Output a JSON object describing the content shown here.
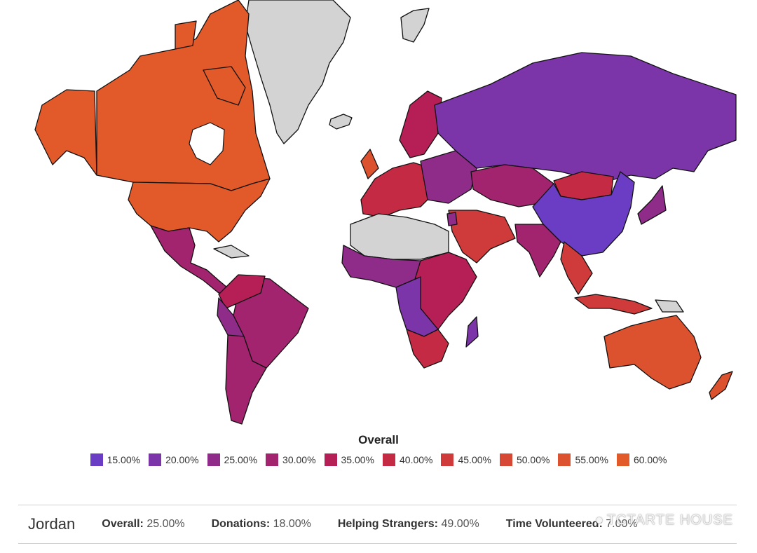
{
  "legend": {
    "title": "Overall",
    "items": [
      {
        "label": "15.00%",
        "color": "#6a3dc4"
      },
      {
        "label": "20.00%",
        "color": "#7b35a8"
      },
      {
        "label": "25.00%",
        "color": "#8f2c8a"
      },
      {
        "label": "30.00%",
        "color": "#a2236e"
      },
      {
        "label": "35.00%",
        "color": "#b61f55"
      },
      {
        "label": "40.00%",
        "color": "#c52a45"
      },
      {
        "label": "45.00%",
        "color": "#cf3a3a"
      },
      {
        "label": "50.00%",
        "color": "#d64833"
      },
      {
        "label": "55.00%",
        "color": "#dc522e"
      },
      {
        "label": "60.00%",
        "color": "#e25a2a"
      }
    ]
  },
  "info": {
    "country": "Jordan",
    "overall_label": "Overall:",
    "overall_value": "25.00%",
    "donations_label": "Donations:",
    "donations_value": "18.00%",
    "helping_label": "Helping Strangers:",
    "helping_value": "49.00%",
    "time_label": "Time Volunteered:",
    "time_value": "7.00%"
  },
  "watermark": {
    "text": "TCTARTE HOUSE",
    "icon": "wechat-icon"
  },
  "colors": {
    "nodata": "#d3d3d3",
    "ocean": "#ffffff",
    "border": "#111111"
  }
}
